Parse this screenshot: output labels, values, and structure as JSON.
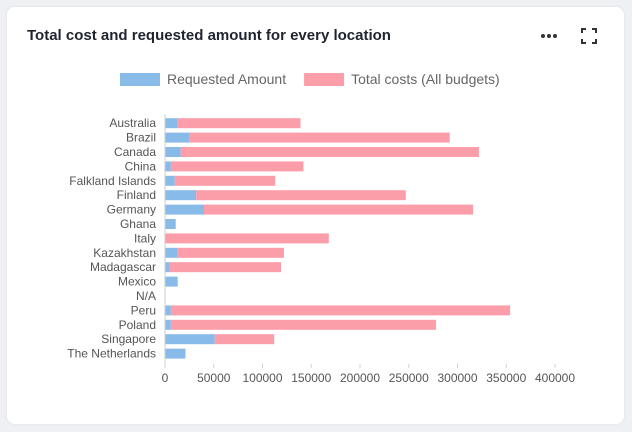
{
  "card": {
    "title": "Total cost and requested amount for every location",
    "more_icon": "more-horizontal-icon",
    "fullscreen_icon": "fullscreen-icon"
  },
  "chart_data": {
    "type": "bar",
    "orientation": "horizontal",
    "stacked": true,
    "categories": [
      "Australia",
      "Brazil",
      "Canada",
      "China",
      "Falkland Islands",
      "Finland",
      "Germany",
      "Ghana",
      "Italy",
      "Kazakhstan",
      "Madagascar",
      "Mexico",
      "N/A",
      "Peru",
      "Poland",
      "Singapore",
      "The Netherlands"
    ],
    "series": [
      {
        "name": "Requested Amount",
        "color": "#89bbe9",
        "values": [
          13000,
          25000,
          16000,
          6000,
          10000,
          32000,
          40000,
          11000,
          0,
          13000,
          5000,
          13000,
          0,
          6000,
          6000,
          51000,
          21000
        ]
      },
      {
        "name": "Total costs (All budgets)",
        "color": "#fb9eaa",
        "values": [
          126000,
          267000,
          306000,
          136000,
          103000,
          215000,
          276000,
          0,
          168000,
          109000,
          114000,
          0,
          0,
          348000,
          272000,
          61000,
          0
        ]
      }
    ],
    "xlim": [
      0,
      400000
    ],
    "xticks": [
      "0",
      "50000",
      "100000",
      "150000",
      "200000",
      "250000",
      "300000",
      "350000",
      "400000"
    ],
    "legend_position": "top",
    "grid": false
  }
}
